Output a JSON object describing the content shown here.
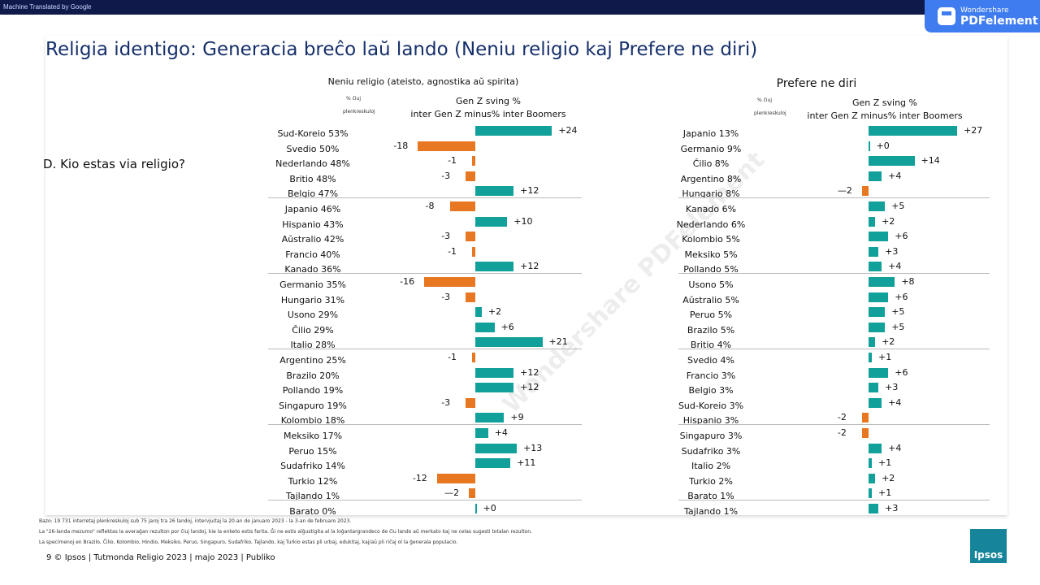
{
  "banner": "Machine Translated by Google",
  "pdf_badge": {
    "brand": "Wondershare",
    "product": "PDFelement"
  },
  "watermark": "Wondershare PDFelement",
  "title": "Religia identigo: Generacia breĉo laŭ lando (Neniu religio kaj Prefere ne diri)",
  "question": "D. Kio estas via religio?",
  "footnotes": [
    "Bazo: 19 731 interretaj plenkreskuloj sub 75 jaroj tra 26 landoj, intervjuitaj la 20-an de januaro 2023 - la 3-an de februaro 2023.",
    "La \"26-landa mezumo\" reflektas la averaĝan rezulton por ĉiuj landoj, kie la enketo estis farita. Ĝi ne estis alĝustigita al la loĝantargrandeco de ĉiu lando aŭ merkato kaj ne celas sugesti totalan rezulton.",
    "La specimenoj en Brazilo, Ĉilio, Kolombio, Hindio, Meksiko, Peruo, Singapuro, Sudafriko, Tajlando, kaj Turkio estas pli urbaj, edukitaj, kaj/aŭ pli riĉaj ol la ĝenerala populacio."
  ],
  "page_footer": "9 © Ipsos | Tutmonda Religio 2023 | majo 2023 | Publiko",
  "ipsos_logo": "Ipsos",
  "colors": {
    "positive": "#11a09a",
    "negative": "#e87722",
    "title": "#16306b"
  },
  "chart_data": [
    {
      "type": "bar",
      "orientation": "horizontal",
      "title": "Neniu religio (ateisto, agnostika aŭ spirita)",
      "col_label_1": "% ĉiuj",
      "col_label_2": "plenkreskuloj",
      "xlabel_1": "Gen Z sving %",
      "xlabel_2": "inter Gen Z minus% inter Boomers",
      "categories": [
        "Sud-Koreio 53%",
        "Svedio 50%",
        "Nederlando 48%",
        "Britio 48%",
        "Belgio 47%",
        "Japanio 46%",
        "Hispanio 43%",
        "Aŭstralio 42%",
        "Francio 40%",
        "Kanado 36%",
        "Germanio 35%",
        "Hungario 31%",
        "Usono 29%",
        "Ĉilio 29%",
        "Italio 28%",
        "Argentino 25%",
        "Brazilo 20%",
        "Pollando 19%",
        "Singapuro 19%",
        "Kolombio 18%",
        "Meksiko 17%",
        "Peruo 15%",
        "Sudafriko 14%",
        "Turkio 12%",
        "Tajlando 1%",
        "Barato 0%"
      ],
      "values": [
        24,
        -18,
        -1,
        -3,
        12,
        -8,
        10,
        -3,
        -1,
        12,
        -16,
        -3,
        2,
        6,
        21,
        -1,
        12,
        12,
        -3,
        9,
        4,
        13,
        11,
        -12,
        -2,
        0
      ],
      "labels": [
        "+24",
        "-18",
        "-1",
        "-3",
        "+12",
        "-8",
        "+10",
        "-3",
        "-1",
        "+12",
        "-16",
        "-3",
        "+2",
        "+6",
        "+21",
        "-1",
        "+12",
        "+12",
        "-3",
        "+9",
        "+4",
        "+13",
        "+11",
        "-12",
        "—2",
        "+0"
      ]
    },
    {
      "type": "bar",
      "orientation": "horizontal",
      "title": "Prefere ne diri",
      "col_label_1": "% ĉiuj",
      "col_label_2": "plenkreskuloj",
      "xlabel_1": "Gen Z sving %",
      "xlabel_2": "inter Gen Z minus% inter Boomers",
      "categories": [
        "Japanio 13%",
        "Germanio 9%",
        "Ĉilio 8%",
        "Argentino 8%",
        "Hungario 8%",
        "Kanado 6%",
        "Nederlando 6%",
        "Kolombio 5%",
        "Meksiko 5%",
        "Pollando 5%",
        "Usono 5%",
        "Aŭstralio 5%",
        "Peruo 5%",
        "Brazilo 5%",
        "Britio 4%",
        "Svedio 4%",
        "Francio 3%",
        "Belgio 3%",
        "Sud-Koreio 3%",
        "Hispanio 3%",
        "Singapuro 3%",
        "Sudafriko 3%",
        "Italio 2%",
        "Turkio 2%",
        "Barato 1%",
        "Tajlando 1%"
      ],
      "values": [
        27,
        0,
        14,
        4,
        -2,
        5,
        2,
        6,
        3,
        4,
        8,
        6,
        5,
        5,
        2,
        1,
        6,
        3,
        4,
        -2,
        -2,
        4,
        1,
        2,
        1,
        3
      ],
      "labels": [
        "+27",
        "+0",
        "+14",
        "+4",
        "—2",
        "+5",
        "+2",
        "+6",
        "+3",
        "+4",
        "+8",
        "+6",
        "+5",
        "+5",
        "+2",
        "+1",
        "+6",
        "+3",
        "+4",
        "-2",
        "-2",
        "+4",
        "+1",
        "+2",
        "+1",
        "+3"
      ]
    }
  ]
}
